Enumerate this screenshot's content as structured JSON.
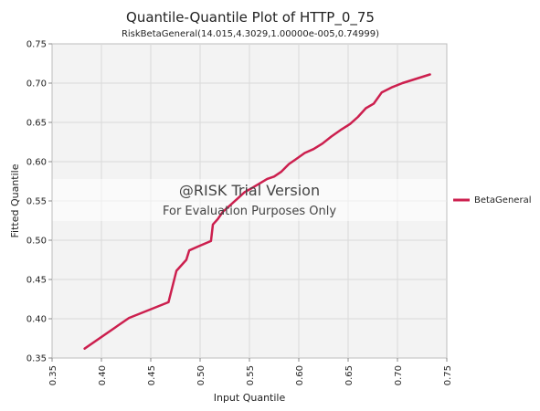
{
  "chart_data": {
    "type": "line",
    "title": "Quantile-Quantile Plot of HTTP_0_75",
    "subtitle": "RiskBetaGeneral(14.015,4.3029,1.00000e-005,0.74999)",
    "xlabel": "Input Quantile",
    "ylabel": "Fitted Quantile",
    "xlim": [
      0.35,
      0.75
    ],
    "ylim": [
      0.35,
      0.75
    ],
    "xticks": [
      "0.35",
      "0.40",
      "0.45",
      "0.50",
      "0.55",
      "0.60",
      "0.65",
      "0.70",
      "0.75"
    ],
    "yticks": [
      "0.35",
      "0.40",
      "0.45",
      "0.50",
      "0.55",
      "0.60",
      "0.65",
      "0.70",
      "0.75"
    ],
    "grid": true,
    "legend": "right",
    "series": [
      {
        "name": "BetaGeneral",
        "color": "#cc1f4e",
        "points": [
          [
            0.383,
            0.362
          ],
          [
            0.428,
            0.401
          ],
          [
            0.468,
            0.421
          ],
          [
            0.476,
            0.461
          ],
          [
            0.486,
            0.475
          ],
          [
            0.489,
            0.487
          ],
          [
            0.498,
            0.492
          ],
          [
            0.511,
            0.499
          ],
          [
            0.513,
            0.52
          ],
          [
            0.518,
            0.527
          ],
          [
            0.523,
            0.536
          ],
          [
            0.53,
            0.544
          ],
          [
            0.538,
            0.553
          ],
          [
            0.545,
            0.561
          ],
          [
            0.552,
            0.566
          ],
          [
            0.56,
            0.572
          ],
          [
            0.568,
            0.578
          ],
          [
            0.575,
            0.581
          ],
          [
            0.582,
            0.587
          ],
          [
            0.59,
            0.597
          ],
          [
            0.597,
            0.603
          ],
          [
            0.606,
            0.611
          ],
          [
            0.615,
            0.616
          ],
          [
            0.624,
            0.623
          ],
          [
            0.633,
            0.632
          ],
          [
            0.642,
            0.64
          ],
          [
            0.652,
            0.648
          ],
          [
            0.66,
            0.657
          ],
          [
            0.668,
            0.668
          ],
          [
            0.676,
            0.674
          ],
          [
            0.684,
            0.688
          ],
          [
            0.695,
            0.695
          ],
          [
            0.705,
            0.7
          ],
          [
            0.733,
            0.711
          ]
        ]
      }
    ]
  },
  "watermark": {
    "line1": "@RISK Trial Version",
    "line2": "For Evaluation Purposes Only"
  }
}
